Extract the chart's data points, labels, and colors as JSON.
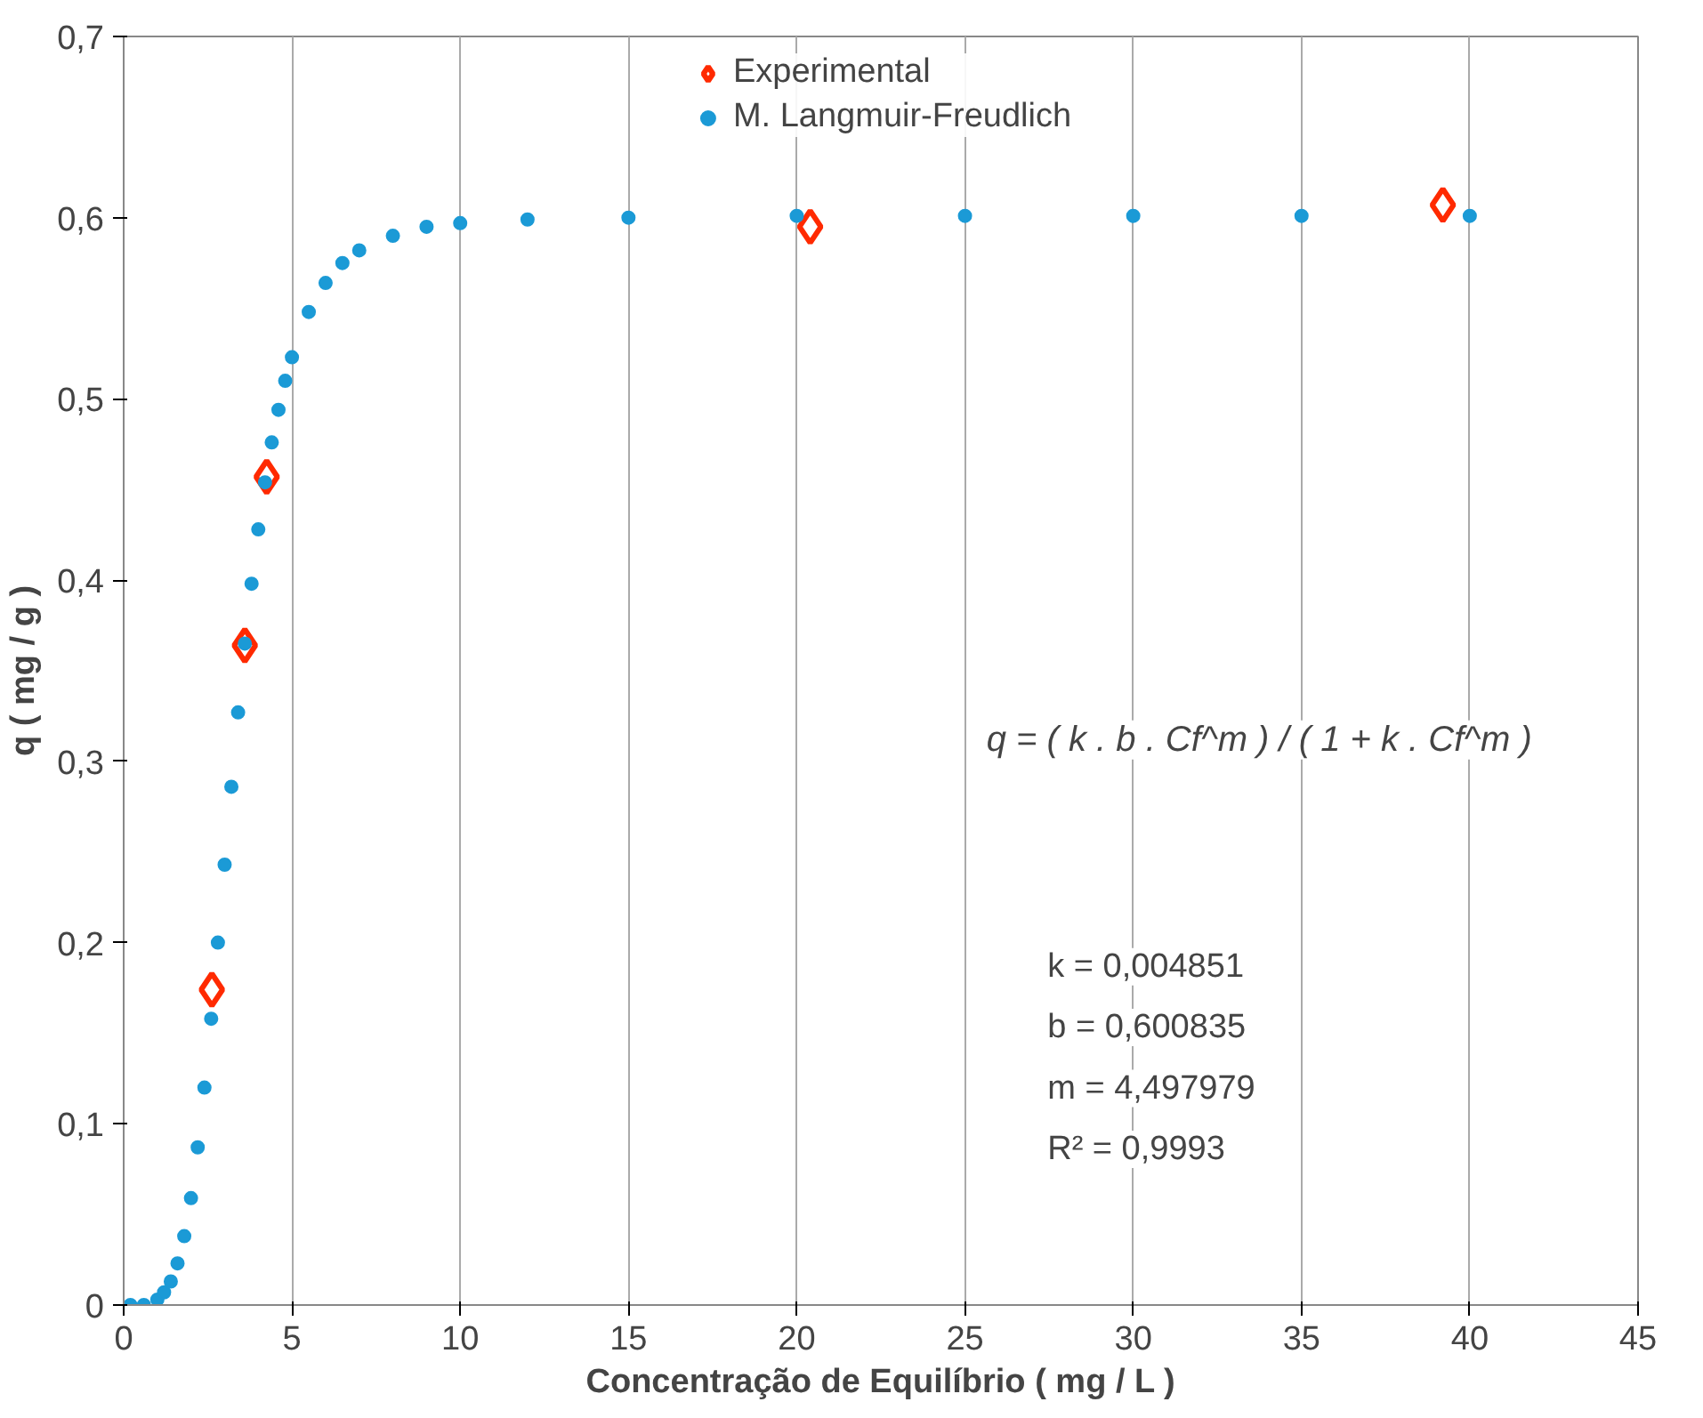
{
  "chart_data": {
    "type": "scatter",
    "xlabel": "Concentração de Equilíbrio ( mg / L )",
    "ylabel": "q ( mg / g )",
    "xlim": [
      0,
      45
    ],
    "ylim": [
      0,
      0.7
    ],
    "xticks": [
      0,
      5,
      10,
      15,
      20,
      25,
      30,
      35,
      40,
      45
    ],
    "yticks": [
      0,
      {
        "value": 0.1,
        "label": "0,1"
      },
      {
        "value": 0.2,
        "label": "0,2"
      },
      {
        "value": 0.3,
        "label": "0,3"
      },
      {
        "value": 0.4,
        "label": "0,4"
      },
      {
        "value": 0.5,
        "label": "0,5"
      },
      {
        "value": 0.6,
        "label": "0,6"
      },
      {
        "value": 0.7,
        "label": "0,7"
      }
    ],
    "grid": "x",
    "legend": "top",
    "series": [
      {
        "name": "Experimental",
        "color": "#ff2a00",
        "marker": "diamond",
        "x": [
          2.62,
          3.6,
          4.25,
          20.4,
          39.2
        ],
        "values": [
          0.174,
          0.364,
          0.457,
          0.595,
          0.607
        ]
      },
      {
        "name": "M. Langmuir-Freudlich",
        "color": "#1b9ad6",
        "marker": "circle",
        "x": [
          0.2,
          0.6,
          1.0,
          1.2,
          1.4,
          1.6,
          1.8,
          2.0,
          2.2,
          2.4,
          2.6,
          2.8,
          3.0,
          3.2,
          3.4,
          3.6,
          3.8,
          4.0,
          4.2,
          4.4,
          4.6,
          4.8,
          5.0,
          5.5,
          6.0,
          6.5,
          7,
          8,
          9,
          10,
          12,
          15,
          20,
          25,
          30,
          35,
          40
        ],
        "values": [
          0,
          0,
          0.003,
          0.007,
          0.013,
          0.023,
          0.038,
          0.059,
          0.087,
          0.12,
          0.158,
          0.2,
          0.243,
          0.286,
          0.327,
          0.365,
          0.398,
          0.428,
          0.454,
          0.476,
          0.494,
          0.51,
          0.523,
          0.548,
          0.564,
          0.575,
          0.582,
          0.59,
          0.595,
          0.597,
          0.599,
          0.6,
          0.601,
          0.601,
          0.601,
          0.601,
          0.601
        ]
      }
    ],
    "annotations": [
      "q = ( k . b . Cf^m ) / ( 1 + k . Cf^m )",
      "k  = 0,004851",
      "b  = 0,600835",
      "m  = 4,497979",
      "R² = 0,9993"
    ]
  }
}
